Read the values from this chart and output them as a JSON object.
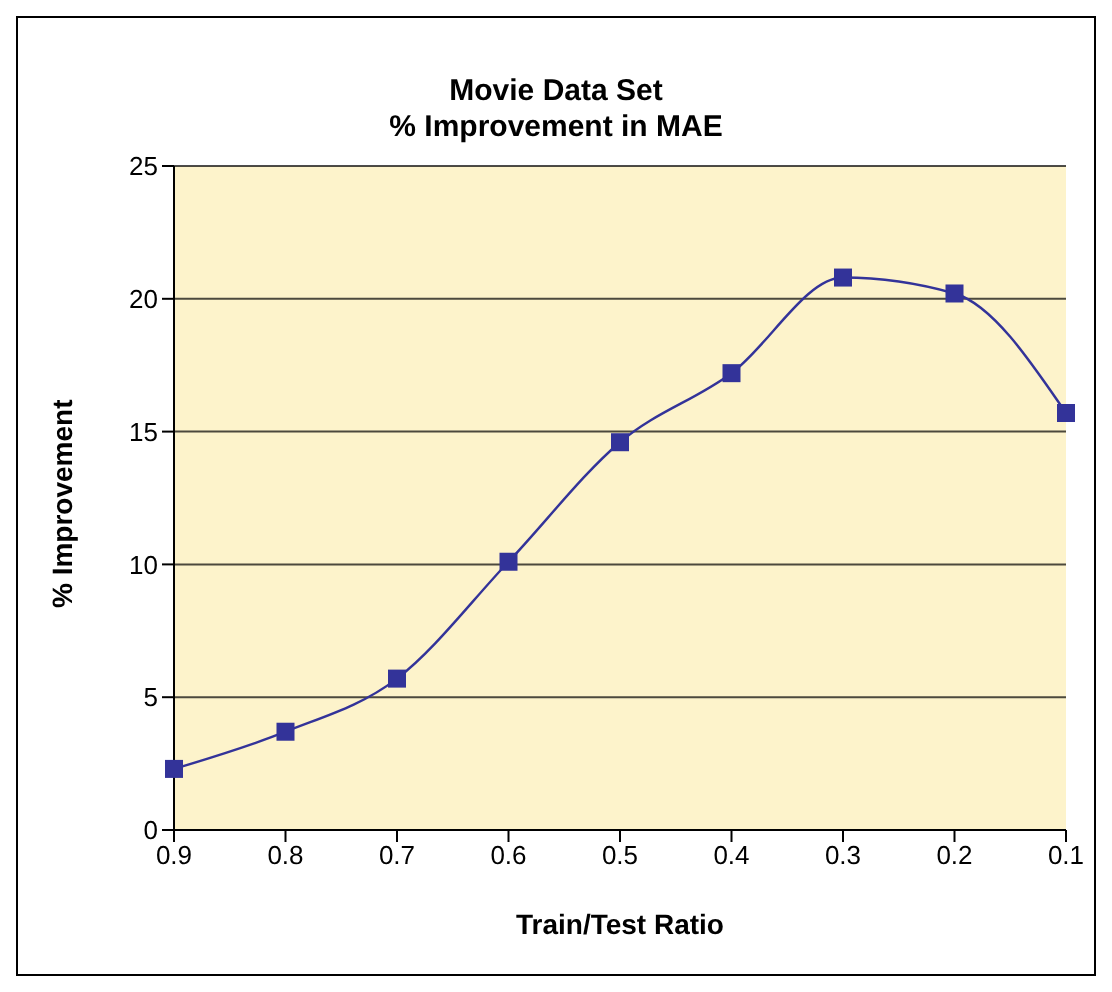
{
  "chart_data": {
    "type": "line",
    "title": "Movie Data Set\n% Improvement in MAE",
    "xlabel": "Train/Test Ratio",
    "ylabel": "% Improvement",
    "categories": [
      "0.9",
      "0.8",
      "0.7",
      "0.6",
      "0.5",
      "0.4",
      "0.3",
      "0.2",
      "0.1"
    ],
    "series": [
      {
        "color": "#333399",
        "values": [
          2.3,
          3.7,
          5.7,
          10.1,
          14.6,
          17.2,
          20.8,
          20.2,
          15.7
        ]
      }
    ],
    "ylim": [
      0,
      25
    ],
    "yticks": [
      0,
      5,
      10,
      15,
      20,
      25
    ],
    "grid": "y",
    "marker": "square",
    "line_style": "solid"
  }
}
